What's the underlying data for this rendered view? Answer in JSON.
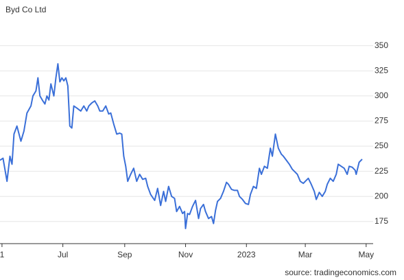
{
  "chart_data": {
    "type": "line",
    "title": "Byd Co Ltd",
    "source": "source: tradingeconomics.com",
    "x": [
      -2,
      1,
      5,
      8,
      10,
      12,
      15,
      19,
      22,
      25,
      29,
      31,
      34,
      36,
      38,
      41,
      43,
      45,
      47,
      49,
      52,
      54,
      56,
      58,
      60,
      62,
      64,
      66,
      68,
      70,
      72,
      75,
      79,
      82,
      85,
      87,
      90,
      93,
      96,
      98,
      101,
      104,
      107,
      109,
      112,
      115,
      118,
      120,
      122,
      124,
      126,
      129,
      132,
      135,
      138,
      141,
      144,
      146,
      149,
      153,
      156,
      159,
      162,
      164,
      167,
      170,
      173,
      175,
      178,
      181,
      183,
      184,
      186,
      188,
      191,
      194,
      197,
      199,
      202,
      204,
      207,
      210,
      212,
      214,
      216,
      219,
      222,
      225,
      227,
      230,
      233,
      236,
      238,
      241,
      244,
      247,
      249,
      252,
      255,
      258,
      260,
      263,
      266,
      269,
      271,
      274,
      277,
      280,
      282,
      285,
      288,
      291,
      293,
      296,
      299,
      302,
      304,
      307,
      310,
      313,
      315,
      318,
      321,
      324,
      326,
      329,
      332,
      335,
      337,
      340,
      343,
      346,
      348,
      351,
      354,
      355,
      358,
      361
    ],
    "series": [
      {
        "name": "Byd Co Ltd",
        "color": "#3a6fd8",
        "values": [
          236,
          238,
          215,
          240,
          232,
          262,
          270,
          255,
          265,
          283,
          290,
          300,
          305,
          318,
          300,
          295,
          292,
          300,
          296,
          312,
          300,
          318,
          332,
          314,
          318,
          315,
          318,
          310,
          270,
          268,
          290,
          288,
          285,
          290,
          285,
          290,
          293,
          295,
          290,
          285,
          285,
          290,
          282,
          283,
          272,
          262,
          263,
          262,
          240,
          230,
          215,
          222,
          228,
          215,
          222,
          217,
          218,
          210,
          202,
          196,
          208,
          191,
          205,
          195,
          210,
          200,
          198,
          185,
          190,
          183,
          185,
          168,
          183,
          182,
          190,
          196,
          178,
          188,
          192,
          185,
          178,
          180,
          173,
          186,
          195,
          198,
          205,
          214,
          212,
          207,
          206,
          206,
          200,
          197,
          193,
          192,
          202,
          210,
          208,
          228,
          222,
          230,
          228,
          248,
          240,
          262,
          248,
          242,
          240,
          236,
          232,
          227,
          225,
          222,
          215,
          213,
          215,
          218,
          212,
          205,
          197,
          204,
          200,
          205,
          212,
          218,
          215,
          222,
          232,
          230,
          228,
          222,
          230,
          229,
          226,
          222,
          234,
          237
        ]
      }
    ],
    "xlim": [
      -2,
      372
    ],
    "xticks": [
      {
        "value": 0,
        "label": "1"
      },
      {
        "value": 61,
        "label": "Jul"
      },
      {
        "value": 123,
        "label": "Sep"
      },
      {
        "value": 184,
        "label": "Nov"
      },
      {
        "value": 245,
        "label": "2023"
      },
      {
        "value": 304,
        "label": "Mar"
      },
      {
        "value": 365,
        "label": "May"
      }
    ],
    "ylim": [
      153,
      375
    ],
    "yticks": [
      175,
      200,
      225,
      250,
      275,
      300,
      325,
      350
    ],
    "grid": true
  }
}
